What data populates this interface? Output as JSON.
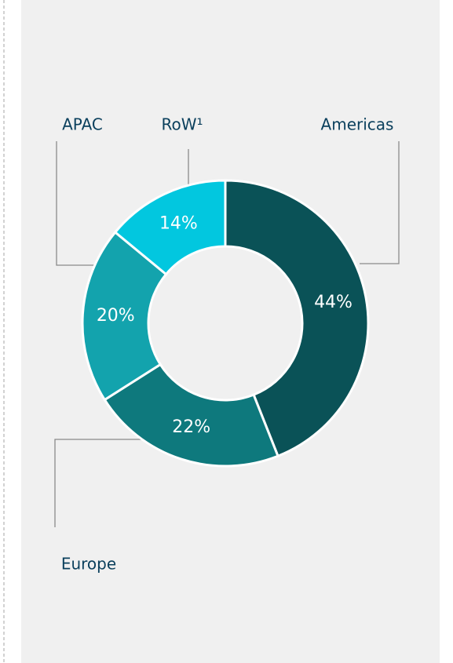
{
  "chart_data": {
    "type": "donut",
    "categories": [
      "Americas",
      "Europe",
      "APAC",
      "RoW¹"
    ],
    "values": [
      44,
      22,
      20,
      14
    ],
    "value_labels": [
      "44%",
      "22%",
      "20%",
      "14%"
    ],
    "colors": [
      "#0a5257",
      "#0e797d",
      "#13a3ad",
      "#02c7df"
    ]
  }
}
